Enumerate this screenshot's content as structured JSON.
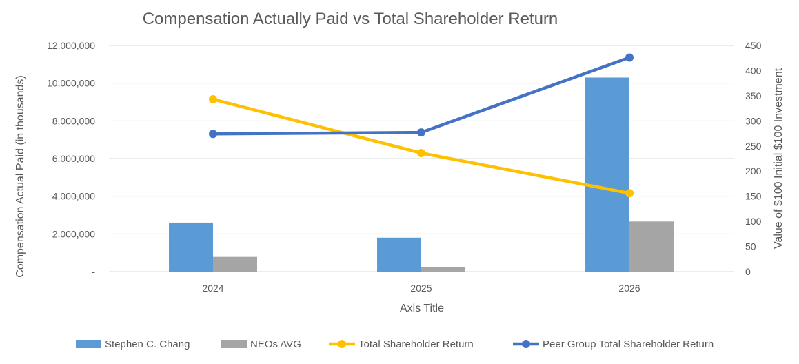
{
  "chart_data": {
    "type": "bar",
    "title": "Compensation Actually Paid vs Total Shareholder Return",
    "xlabel": "Axis Title",
    "ylabel": "Compensation Actual Paid (in thousands)",
    "y2label": "Value of $100 Initial $100 Investment",
    "categories": [
      "2024",
      "2025",
      "2026"
    ],
    "ylim": [
      0,
      12000000
    ],
    "y2lim": [
      0,
      450
    ],
    "y_ticks": [
      "-",
      "2,000,000",
      "4,000,000",
      "6,000,000",
      "8,000,000",
      "10,000,000",
      "12,000,000"
    ],
    "y2_ticks": [
      "0",
      "50",
      "100",
      "150",
      "200",
      "250",
      "300",
      "350",
      "400",
      "450"
    ],
    "grid": true,
    "legend_position": "bottom",
    "series": [
      {
        "name": "Stephen C. Chang",
        "kind": "bar",
        "axis": "left",
        "color": "#5B9BD5",
        "values": [
          2600000,
          1800000,
          10300000
        ]
      },
      {
        "name": "NEOs AVG",
        "kind": "bar",
        "axis": "left",
        "color": "#A5A5A5",
        "values": [
          780000,
          220000,
          2660000
        ]
      },
      {
        "name": "Total Shareholder Return",
        "kind": "line",
        "axis": "right",
        "color": "#FFC000",
        "values": [
          343,
          236,
          156
        ]
      },
      {
        "name": "Peer Group Total Shareholder Return",
        "kind": "line",
        "axis": "right",
        "color": "#4472C4",
        "values": [
          274,
          277,
          426
        ]
      }
    ]
  }
}
